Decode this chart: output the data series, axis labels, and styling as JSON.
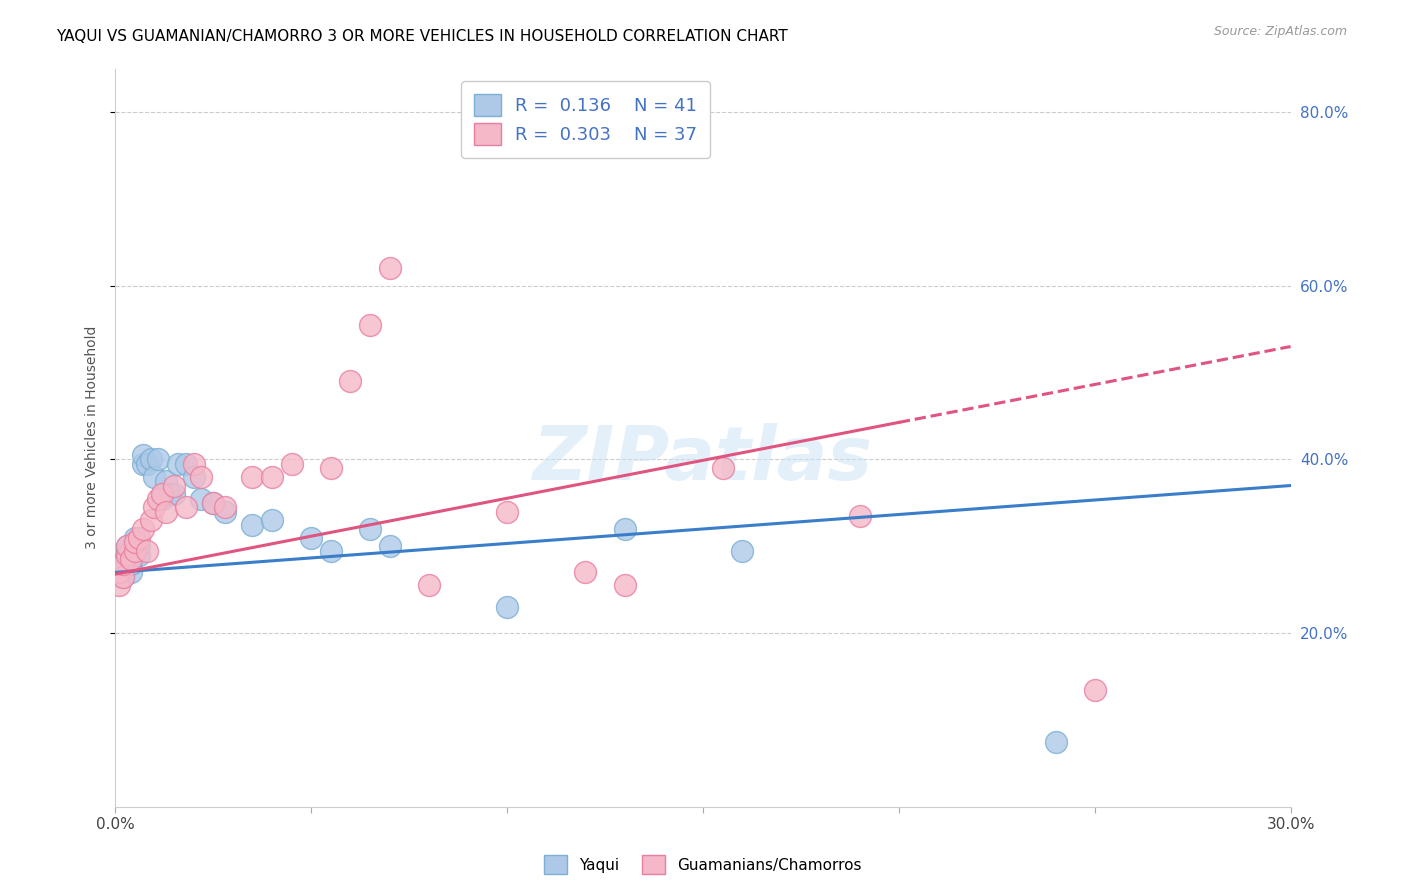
{
  "title": "YAQUI VS GUAMANIAN/CHAMORRO 3 OR MORE VEHICLES IN HOUSEHOLD CORRELATION CHART",
  "source": "Source: ZipAtlas.com",
  "ylabel": "3 or more Vehicles in Household",
  "xlim": [
    0.0,
    0.3
  ],
  "ylim": [
    0.0,
    0.85
  ],
  "xticks": [
    0.0,
    0.05,
    0.1,
    0.15,
    0.2,
    0.25,
    0.3
  ],
  "xticklabels": [
    "0.0%",
    "",
    "",
    "",
    "",
    "",
    "30.0%"
  ],
  "yticks_right": [
    0.2,
    0.4,
    0.6,
    0.8
  ],
  "ytick_labels_right": [
    "20.0%",
    "40.0%",
    "60.0%",
    "80.0%"
  ],
  "legend_R1": "0.136",
  "legend_N1": "41",
  "legend_R2": "0.303",
  "legend_N2": "37",
  "legend_label1": "Yaqui",
  "legend_label2": "Guamanians/Chamorros",
  "watermark": "ZIPatlas",
  "yaqui_x": [
    0.001,
    0.001,
    0.002,
    0.002,
    0.003,
    0.003,
    0.003,
    0.004,
    0.004,
    0.004,
    0.005,
    0.005,
    0.005,
    0.006,
    0.006,
    0.007,
    0.007,
    0.008,
    0.009,
    0.01,
    0.011,
    0.012,
    0.013,
    0.014,
    0.015,
    0.016,
    0.018,
    0.02,
    0.022,
    0.025,
    0.028,
    0.035,
    0.04,
    0.05,
    0.055,
    0.065,
    0.07,
    0.1,
    0.13,
    0.16,
    0.24
  ],
  "yaqui_y": [
    0.27,
    0.28,
    0.265,
    0.275,
    0.29,
    0.295,
    0.3,
    0.27,
    0.28,
    0.285,
    0.295,
    0.3,
    0.31,
    0.29,
    0.3,
    0.395,
    0.405,
    0.395,
    0.4,
    0.38,
    0.4,
    0.355,
    0.375,
    0.36,
    0.36,
    0.395,
    0.395,
    0.38,
    0.355,
    0.35,
    0.34,
    0.325,
    0.33,
    0.31,
    0.295,
    0.32,
    0.3,
    0.23,
    0.32,
    0.295,
    0.075
  ],
  "chamorro_x": [
    0.001,
    0.001,
    0.002,
    0.002,
    0.003,
    0.003,
    0.004,
    0.005,
    0.005,
    0.006,
    0.007,
    0.008,
    0.009,
    0.01,
    0.011,
    0.012,
    0.013,
    0.015,
    0.018,
    0.02,
    0.022,
    0.025,
    0.028,
    0.035,
    0.04,
    0.045,
    0.055,
    0.06,
    0.065,
    0.07,
    0.08,
    0.1,
    0.12,
    0.13,
    0.155,
    0.19,
    0.25
  ],
  "chamorro_y": [
    0.255,
    0.27,
    0.265,
    0.28,
    0.29,
    0.3,
    0.285,
    0.295,
    0.305,
    0.31,
    0.32,
    0.295,
    0.33,
    0.345,
    0.355,
    0.36,
    0.34,
    0.37,
    0.345,
    0.395,
    0.38,
    0.35,
    0.345,
    0.38,
    0.38,
    0.395,
    0.39,
    0.49,
    0.555,
    0.62,
    0.255,
    0.34,
    0.27,
    0.255,
    0.39,
    0.335,
    0.135
  ],
  "trendline_blue_x0": 0.0,
  "trendline_blue_y0": 0.27,
  "trendline_blue_x1": 0.3,
  "trendline_blue_y1": 0.37,
  "trendline_pink_x0": 0.0,
  "trendline_pink_y0": 0.268,
  "trendline_pink_x1": 0.3,
  "trendline_pink_y1": 0.53
}
